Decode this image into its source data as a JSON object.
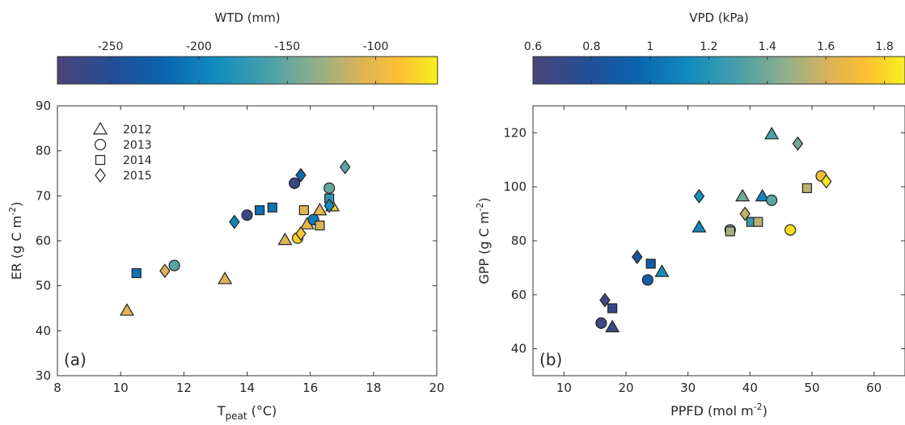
{
  "chart_data": [
    {
      "type": "scatter",
      "panel_label": "(a)",
      "xlabel_main": "T",
      "xlabel_sub": "peat",
      "xlabel_unit": " (°C)",
      "ylabel_pre": "ER (g C m",
      "ylabel_sup": "-2",
      "ylabel_post": ")",
      "xlim": [
        8,
        20
      ],
      "ylim": [
        30,
        90
      ],
      "xticks": [
        "8",
        "10",
        "12",
        "14",
        "16",
        "18",
        "20"
      ],
      "yticks": [
        "30",
        "40",
        "50",
        "60",
        "70",
        "80",
        "90"
      ],
      "colorbar": {
        "label": "WTD (mm)",
        "range": [
          -280,
          -65
        ],
        "ticks": [
          "-250",
          "-200",
          "-150",
          "-100"
        ]
      },
      "legend": [
        "2012",
        "2013",
        "2014",
        "2015"
      ],
      "legend_position": "top-left",
      "points": [
        {
          "year": "2012",
          "x": 10.2,
          "y": 44.5,
          "c": -105
        },
        {
          "year": "2012",
          "x": 13.3,
          "y": 51.5,
          "c": -108
        },
        {
          "year": "2012",
          "x": 15.2,
          "y": 60.2,
          "c": -105
        },
        {
          "year": "2012",
          "x": 15.9,
          "y": 63.7,
          "c": -100
        },
        {
          "year": "2012",
          "x": 16.3,
          "y": 66.8,
          "c": -100
        },
        {
          "year": "2012",
          "x": 16.7,
          "y": 67.7,
          "c": -80
        },
        {
          "year": "2013",
          "x": 11.7,
          "y": 54.5,
          "c": -155
        },
        {
          "year": "2013",
          "x": 14.0,
          "y": 65.7,
          "c": -268
        },
        {
          "year": "2013",
          "x": 15.5,
          "y": 72.8,
          "c": -268
        },
        {
          "year": "2013",
          "x": 15.6,
          "y": 60.6,
          "c": -80
        },
        {
          "year": "2013",
          "x": 16.1,
          "y": 64.7,
          "c": -200
        },
        {
          "year": "2013",
          "x": 16.6,
          "y": 71.7,
          "c": -150
        },
        {
          "year": "2014",
          "x": 10.5,
          "y": 52.8,
          "c": -210
        },
        {
          "year": "2014",
          "x": 14.4,
          "y": 66.8,
          "c": -210
        },
        {
          "year": "2014",
          "x": 14.8,
          "y": 67.4,
          "c": -210
        },
        {
          "year": "2014",
          "x": 15.8,
          "y": 66.8,
          "c": -105
        },
        {
          "year": "2014",
          "x": 16.3,
          "y": 63.4,
          "c": -110
        },
        {
          "year": "2014",
          "x": 16.6,
          "y": 69.4,
          "c": -175
        },
        {
          "year": "2015",
          "x": 11.4,
          "y": 53.3,
          "c": -108
        },
        {
          "year": "2015",
          "x": 13.6,
          "y": 64.2,
          "c": -195
        },
        {
          "year": "2015",
          "x": 15.7,
          "y": 74.6,
          "c": -215
        },
        {
          "year": "2015",
          "x": 15.7,
          "y": 61.6,
          "c": -85
        },
        {
          "year": "2015",
          "x": 16.6,
          "y": 67.8,
          "c": -190
        },
        {
          "year": "2015",
          "x": 17.1,
          "y": 76.4,
          "c": -155
        }
      ]
    },
    {
      "type": "scatter",
      "panel_label": "(b)",
      "xlabel_main": "PPFD (mol m",
      "xlabel_sup": "-2",
      "xlabel_post": ")",
      "ylabel_pre": "GPP (g C m",
      "ylabel_sup": "-2",
      "ylabel_post": ")",
      "xlim": [
        5,
        65
      ],
      "ylim": [
        30,
        130
      ],
      "xticks": [
        "10",
        "20",
        "30",
        "40",
        "50",
        "60"
      ],
      "yticks": [
        "40",
        "60",
        "80",
        "100",
        "120"
      ],
      "colorbar": {
        "label": "VPD (kPa)",
        "range": [
          0.6,
          1.87
        ],
        "ticks": [
          "0.6",
          "0.8",
          "1",
          "1.2",
          "1.4",
          "1.6",
          "1.8"
        ]
      },
      "points": [
        {
          "year": "2012",
          "x": 17.8,
          "y": 48.0,
          "c": 0.68
        },
        {
          "year": "2012",
          "x": 25.8,
          "y": 68.5,
          "c": 1.15
        },
        {
          "year": "2012",
          "x": 31.8,
          "y": 85.0,
          "c": 1.1
        },
        {
          "year": "2012",
          "x": 38.8,
          "y": 96.5,
          "c": 1.4
        },
        {
          "year": "2012",
          "x": 42.0,
          "y": 96.5,
          "c": 1.1
        },
        {
          "year": "2012",
          "x": 43.5,
          "y": 119.5,
          "c": 1.3
        },
        {
          "year": "2013",
          "x": 16.0,
          "y": 49.5,
          "c": 0.65
        },
        {
          "year": "2013",
          "x": 23.5,
          "y": 65.5,
          "c": 0.9
        },
        {
          "year": "2013",
          "x": 36.8,
          "y": 84.0,
          "c": 1.4
        },
        {
          "year": "2013",
          "x": 43.5,
          "y": 95.0,
          "c": 1.35
        },
        {
          "year": "2013",
          "x": 46.5,
          "y": 84.0,
          "c": 1.82
        },
        {
          "year": "2013",
          "x": 51.5,
          "y": 104.0,
          "c": 1.7
        },
        {
          "year": "2014",
          "x": 17.8,
          "y": 55.0,
          "c": 0.7
        },
        {
          "year": "2014",
          "x": 24.0,
          "y": 71.5,
          "c": 0.9
        },
        {
          "year": "2014",
          "x": 36.8,
          "y": 83.5,
          "c": 1.5
        },
        {
          "year": "2014",
          "x": 40.2,
          "y": 87.0,
          "c": 1.25
        },
        {
          "year": "2014",
          "x": 41.3,
          "y": 87.0,
          "c": 1.55
        },
        {
          "year": "2014",
          "x": 49.2,
          "y": 99.5,
          "c": 1.55
        },
        {
          "year": "2015",
          "x": 16.6,
          "y": 58.0,
          "c": 0.65
        },
        {
          "year": "2015",
          "x": 21.8,
          "y": 74.0,
          "c": 0.85
        },
        {
          "year": "2015",
          "x": 31.8,
          "y": 96.5,
          "c": 1.15
        },
        {
          "year": "2015",
          "x": 39.2,
          "y": 90.0,
          "c": 1.55
        },
        {
          "year": "2015",
          "x": 47.7,
          "y": 116.0,
          "c": 1.4
        },
        {
          "year": "2015",
          "x": 52.3,
          "y": 102.0,
          "c": 1.85
        }
      ]
    }
  ]
}
